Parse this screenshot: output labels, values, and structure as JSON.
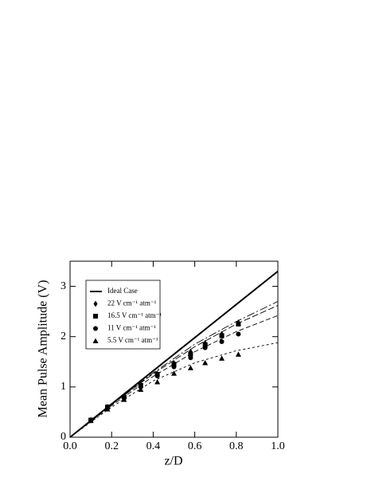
{
  "chart_data": {
    "type": "scatter",
    "xlabel": "z/D",
    "ylabel": "Mean Pulse Amplitude (V)",
    "xlim": [
      0,
      1
    ],
    "ylim": [
      0,
      3.5
    ],
    "xticks": [
      {
        "value": 0,
        "label": "0.0"
      },
      0.2,
      0.4,
      0.6,
      0.8,
      {
        "value": 1,
        "label": "1.0"
      }
    ],
    "yticks": [
      0,
      1,
      2,
      3
    ],
    "series": [
      {
        "name": "Ideal Case",
        "marker": "line",
        "color": "#000000",
        "x": [
          0,
          1
        ],
        "values": [
          0,
          3.3
        ]
      },
      {
        "name": "22 V cm⁻¹ atm⁻¹",
        "marker": "diamond",
        "color": "#000000",
        "x": [
          0.1,
          0.18,
          0.26,
          0.34,
          0.42,
          0.5,
          0.58,
          0.65,
          0.73,
          0.81
        ],
        "values": [
          0.34,
          0.6,
          0.82,
          1.05,
          1.25,
          1.47,
          1.7,
          1.87,
          2.05,
          2.28
        ]
      },
      {
        "name": "16.5 V cm⁻¹ atm⁻¹",
        "marker": "square",
        "color": "#000000",
        "x": [
          0.1,
          0.18,
          0.26,
          0.34,
          0.42,
          0.5,
          0.58,
          0.65,
          0.73,
          0.81
        ],
        "values": [
          0.34,
          0.6,
          0.8,
          1.03,
          1.25,
          1.45,
          1.65,
          1.84,
          2.02,
          2.25
        ]
      },
      {
        "name": "11 V cm⁻¹ atm⁻¹",
        "marker": "circle",
        "color": "#000000",
        "x": [
          0.1,
          0.18,
          0.26,
          0.34,
          0.42,
          0.5,
          0.58,
          0.65,
          0.73,
          0.81
        ],
        "values": [
          0.33,
          0.58,
          0.78,
          1.0,
          1.22,
          1.4,
          1.58,
          1.78,
          1.9,
          2.05
        ]
      },
      {
        "name": "5.5 V cm⁻¹ atm⁻¹",
        "marker": "triangle",
        "color": "#000000",
        "x": [
          0.1,
          0.18,
          0.26,
          0.34,
          0.42,
          0.5,
          0.58,
          0.65,
          0.73,
          0.81
        ],
        "values": [
          0.33,
          0.56,
          0.75,
          0.95,
          1.1,
          1.27,
          1.38,
          1.48,
          1.57,
          1.65
        ]
      }
    ],
    "fits": [
      {
        "dash": "10 3 2 3",
        "x": [
          0,
          0.2,
          0.4,
          0.6,
          0.8,
          1
        ],
        "values": [
          0,
          0.66,
          1.28,
          1.85,
          2.3,
          2.7
        ]
      },
      {
        "dash": "8 3",
        "x": [
          0,
          0.2,
          0.4,
          0.6,
          0.8,
          1
        ],
        "values": [
          0,
          0.65,
          1.26,
          1.8,
          2.25,
          2.62
        ]
      },
      {
        "dash": "6 3",
        "x": [
          0,
          0.2,
          0.4,
          0.6,
          0.8,
          1
        ],
        "values": [
          0,
          0.63,
          1.21,
          1.7,
          2.1,
          2.42
        ]
      },
      {
        "dash": "3 3",
        "x": [
          0,
          0.2,
          0.4,
          0.6,
          0.8,
          1
        ],
        "values": [
          0,
          0.6,
          1.12,
          1.48,
          1.72,
          1.88
        ]
      }
    ]
  }
}
